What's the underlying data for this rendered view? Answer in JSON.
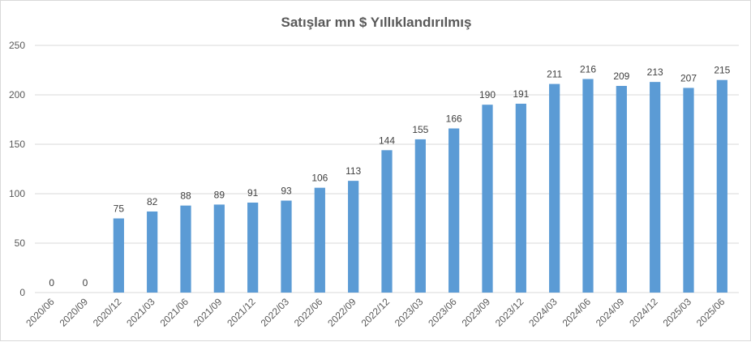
{
  "chart_data": {
    "type": "bar",
    "title": "Satışlar mn $ Yıllıklandırılmış",
    "xlabel": "",
    "ylabel": "",
    "ylim": [
      0,
      250
    ],
    "yticks": [
      "0",
      "50",
      "100",
      "150",
      "200",
      "250"
    ],
    "grid": true,
    "legend": "none",
    "bar_color": "#5b9bd5",
    "categories": [
      "2020/06",
      "2020/09",
      "2020/12",
      "2021/03",
      "2021/06",
      "2021/09",
      "2021/12",
      "2022/03",
      "2022/06",
      "2022/09",
      "2022/12",
      "2023/03",
      "2023/06",
      "2023/09",
      "2023/12",
      "2024/03",
      "2024/06",
      "2024/09",
      "2024/12",
      "2025/03",
      "2025/06"
    ],
    "values": [
      0,
      0,
      75,
      82,
      88,
      89,
      91,
      93,
      106,
      113,
      144,
      155,
      166,
      190,
      191,
      211,
      216,
      209,
      213,
      207,
      215
    ]
  }
}
